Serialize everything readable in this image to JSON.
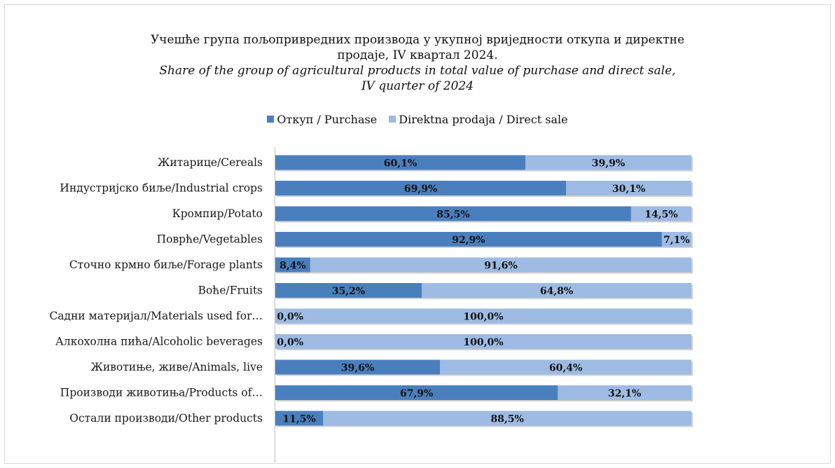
{
  "chart_data": {
    "type": "bar",
    "orientation": "horizontal",
    "stacked": "100%",
    "title_lines": [
      "Учешће група  пољопривредних производа у укупној вриједности откупа и директне",
      "продаје, IV квартал 2024."
    ],
    "subtitle_lines": [
      "Share of the group of agricultural products in total value of purchase and direct sale,",
      "IV quarter of 2024"
    ],
    "legend_position": "top",
    "categories": [
      "Житарице/Cereals",
      "Индустријско биље/Industrial crops",
      "Кромпир/Potato",
      "Поврће/Vegetables",
      "Сточно крмно биље/Forage plants",
      "Воће/Fruits",
      "Садни материјал/Materials used for…",
      "Алкохолна пића/Alcoholic beverages",
      "Животиње, живе/Animals, live",
      "Производи животиња/Products of…",
      "Остали производи/Other products"
    ],
    "series": [
      {
        "name": "Откуп / Purchase",
        "color": "#4a7fbd",
        "values": [
          60.1,
          69.9,
          85.5,
          92.9,
          8.4,
          35.2,
          0.0,
          0.0,
          39.6,
          67.9,
          11.5
        ],
        "labels": [
          "60,1%",
          "69,9%",
          "85,5%",
          "92,9%",
          "8,4%",
          "35,2%",
          "0,0%",
          "0,0%",
          "39,6%",
          "67,9%",
          "11,5%"
        ]
      },
      {
        "name": "Direktna prodaja / Direct sale",
        "color": "#9dbbe3",
        "values": [
          39.9,
          30.1,
          14.5,
          7.1,
          91.6,
          64.8,
          100.0,
          100.0,
          60.4,
          32.1,
          88.5
        ],
        "labels": [
          "39,9%",
          "30,1%",
          "14,5%",
          "7,1%",
          "91,6%",
          "64,8%",
          "100,0%",
          "100,0%",
          "60,4%",
          "32,1%",
          "88,5%"
        ]
      }
    ],
    "xlim": [
      0,
      100
    ],
    "grid": false
  }
}
